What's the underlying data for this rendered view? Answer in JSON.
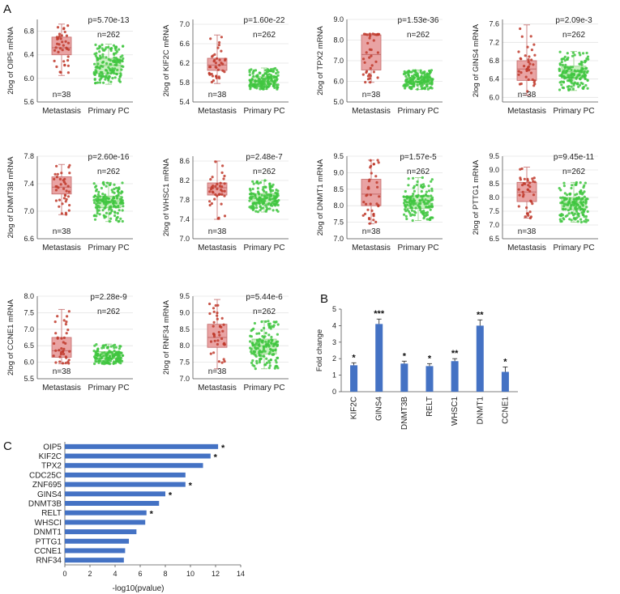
{
  "panels": {
    "A": "A",
    "B": "B",
    "C": "C"
  },
  "chart_data": [
    {
      "type": "box",
      "panel": "A",
      "ylabel": "2log of OIP5 mRNA",
      "categories": [
        "Metastasis",
        "Primary PC"
      ],
      "ylim": [
        5.6,
        7.0
      ],
      "yticks": [
        "5.6",
        "6.0",
        "6.4",
        "6.8"
      ],
      "p_value": "p=5.70e-13",
      "n_labels": [
        "n=38",
        "n=262"
      ],
      "n": [
        38,
        262
      ],
      "boxes": [
        {
          "q1": 6.4,
          "median": 6.52,
          "q3": 6.7,
          "whisker_low": 6.05,
          "whisker_high": 6.92
        },
        {
          "q1": 6.08,
          "median": 6.22,
          "q3": 6.34,
          "whisker_low": 5.9,
          "whisker_high": 6.58
        }
      ]
    },
    {
      "type": "box",
      "panel": "A",
      "ylabel": "2log of KIF2C mRNA",
      "categories": [
        "Metastasis",
        "Primary PC"
      ],
      "ylim": [
        5.4,
        7.1
      ],
      "yticks": [
        "5.4",
        "5.8",
        "6.2",
        "6.6",
        "7.0"
      ],
      "p_value": "p=1.60e-22",
      "n_labels": [
        "n=38",
        "n=262"
      ],
      "n": [
        38,
        262
      ],
      "boxes": [
        {
          "q1": 6.05,
          "median": 6.16,
          "q3": 6.3,
          "whisker_low": 5.78,
          "whisker_high": 6.78
        },
        {
          "q1": 5.76,
          "median": 5.83,
          "q3": 5.92,
          "whisker_low": 5.66,
          "whisker_high": 6.1
        }
      ]
    },
    {
      "type": "box",
      "panel": "A",
      "ylabel": "2log of TPX2 mRNA",
      "categories": [
        "Metastasis",
        "Primary PC"
      ],
      "ylim": [
        5.0,
        9.0
      ],
      "yticks": [
        "5.0",
        "6.0",
        "7.0",
        "8.0",
        "9.0"
      ],
      "p_value": "p=1.53e-36",
      "n_labels": [
        "n=38",
        "n=262"
      ],
      "n": [
        38,
        262
      ],
      "boxes": [
        {
          "q1": 6.55,
          "median": 7.3,
          "q3": 8.25,
          "whisker_low": 5.95,
          "whisker_high": 8.3
        },
        {
          "q1": 5.85,
          "median": 6.0,
          "q3": 6.2,
          "whisker_low": 5.6,
          "whisker_high": 6.55
        }
      ]
    },
    {
      "type": "box",
      "panel": "A",
      "ylabel": "2log of GINS4 mRNA",
      "categories": [
        "Metastasis",
        "Primary PC"
      ],
      "ylim": [
        5.9,
        7.7
      ],
      "yticks": [
        "6.0",
        "6.4",
        "6.8",
        "7.2",
        "7.6"
      ],
      "p_value": "p=2.09e-3",
      "n_labels": [
        "n=38",
        "n=262"
      ],
      "n": [
        38,
        262
      ],
      "boxes": [
        {
          "q1": 6.37,
          "median": 6.62,
          "q3": 6.8,
          "whisker_low": 6.05,
          "whisker_high": 7.58
        },
        {
          "q1": 6.42,
          "median": 6.56,
          "q3": 6.68,
          "whisker_low": 6.15,
          "whisker_high": 7.0
        }
      ]
    },
    {
      "type": "box",
      "panel": "A",
      "ylabel": "2log of DNMT3B mRNA",
      "categories": [
        "Metastasis",
        "Primary PC"
      ],
      "ylim": [
        6.6,
        7.8
      ],
      "yticks": [
        "6.6",
        "7.0",
        "7.4",
        "7.8"
      ],
      "p_value": "p=2.60e-16",
      "n_labels": [
        "n=38",
        "n=262"
      ],
      "n": [
        38,
        262
      ],
      "boxes": [
        {
          "q1": 7.25,
          "median": 7.35,
          "q3": 7.5,
          "whisker_low": 6.95,
          "whisker_high": 7.68
        },
        {
          "q1": 7.05,
          "median": 7.15,
          "q3": 7.22,
          "whisker_low": 6.85,
          "whisker_high": 7.42
        }
      ]
    },
    {
      "type": "box",
      "panel": "A",
      "ylabel": "2log of WHSC1 mRNA",
      "categories": [
        "Metastasis",
        "Primary PC"
      ],
      "ylim": [
        7.0,
        8.7
      ],
      "yticks": [
        "7.0",
        "7.4",
        "7.8",
        "8.2",
        "8.6"
      ],
      "p_value": "p=2.48e-7",
      "n_labels": [
        "n=38",
        "n=262"
      ],
      "n": [
        38,
        262
      ],
      "boxes": [
        {
          "q1": 7.9,
          "median": 8.05,
          "q3": 8.15,
          "whisker_low": 7.4,
          "whisker_high": 8.6
        },
        {
          "q1": 7.72,
          "median": 7.83,
          "q3": 7.93,
          "whisker_low": 7.55,
          "whisker_high": 8.2
        }
      ]
    },
    {
      "type": "box",
      "panel": "A",
      "ylabel": "2log of DNMT1 mRNA",
      "categories": [
        "Metastasis",
        "Primary PC"
      ],
      "ylim": [
        7.0,
        9.5
      ],
      "yticks": [
        "7.0",
        "7.5",
        "8.0",
        "8.5",
        "9.0",
        "9.5"
      ],
      "p_value": "p=1.57e-5",
      "n_labels": [
        "n=38",
        "n=262"
      ],
      "n": [
        38,
        262
      ],
      "boxes": [
        {
          "q1": 8.0,
          "median": 8.35,
          "q3": 8.8,
          "whisker_low": 7.45,
          "whisker_high": 9.38
        },
        {
          "q1": 7.92,
          "median": 8.1,
          "q3": 8.3,
          "whisker_low": 7.55,
          "whisker_high": 8.85
        }
      ]
    },
    {
      "type": "box",
      "panel": "A",
      "ylabel": "2log of PTTG1 mRNA",
      "categories": [
        "Metastasis",
        "Primary PC"
      ],
      "ylim": [
        6.5,
        9.5
      ],
      "yticks": [
        "6.5",
        "7.0",
        "7.5",
        "8.0",
        "8.5",
        "9.0",
        "9.5"
      ],
      "p_value": "p=9.45e-11",
      "n_labels": [
        "n=38",
        "n=262"
      ],
      "n": [
        38,
        262
      ],
      "boxes": [
        {
          "q1": 7.85,
          "median": 8.2,
          "q3": 8.55,
          "whisker_low": 7.25,
          "whisker_high": 9.1
        },
        {
          "q1": 7.55,
          "median": 7.8,
          "q3": 8.0,
          "whisker_low": 7.1,
          "whisker_high": 8.55
        }
      ]
    },
    {
      "type": "box",
      "panel": "A",
      "ylabel": "2log of CCNE1 mRNA",
      "categories": [
        "Metastasis",
        "Primary PC"
      ],
      "ylim": [
        5.5,
        8.0
      ],
      "yticks": [
        "5.5",
        "6.0",
        "6.5",
        "7.0",
        "7.5",
        "8.0"
      ],
      "p_value": "p=2.28e-9",
      "n_labels": [
        "n=38",
        "n=262"
      ],
      "n": [
        38,
        262
      ],
      "boxes": [
        {
          "q1": 6.15,
          "median": 6.35,
          "q3": 6.75,
          "whisker_low": 5.95,
          "whisker_high": 7.6
        },
        {
          "q1": 6.1,
          "median": 6.22,
          "q3": 6.32,
          "whisker_low": 5.95,
          "whisker_high": 6.55
        }
      ]
    },
    {
      "type": "box",
      "panel": "A",
      "ylabel": "2log of RNF34 mRNA",
      "categories": [
        "Metastasis",
        "Primary PC"
      ],
      "ylim": [
        7.0,
        9.5
      ],
      "yticks": [
        "7.0",
        "7.5",
        "8.0",
        "8.5",
        "9.0",
        "9.5"
      ],
      "p_value": "p=5.44e-6",
      "n_labels": [
        "n=38",
        "n=262"
      ],
      "n": [
        38,
        262
      ],
      "boxes": [
        {
          "q1": 7.95,
          "median": 8.25,
          "q3": 8.65,
          "whisker_low": 7.3,
          "whisker_high": 9.4
        },
        {
          "q1": 7.75,
          "median": 8.0,
          "q3": 8.2,
          "whisker_low": 7.3,
          "whisker_high": 8.75
        }
      ]
    },
    {
      "type": "bar",
      "panel": "B",
      "ylabel": "Fold change",
      "categories": [
        "KIF2C",
        "GINS4",
        "DNMT3B",
        "RELT",
        "WHSC1",
        "DNMT1",
        "CCNE1"
      ],
      "values": [
        1.6,
        4.1,
        1.7,
        1.55,
        1.85,
        4.0,
        1.2
      ],
      "errors": [
        0.15,
        0.3,
        0.15,
        0.15,
        0.15,
        0.35,
        0.3
      ],
      "significance": [
        "*",
        "***",
        "*",
        "*",
        "**",
        "**",
        "*"
      ],
      "ylim": [
        0,
        5
      ],
      "yticks": [
        "0",
        "1",
        "2",
        "3",
        "4",
        "5"
      ]
    },
    {
      "type": "barh",
      "panel": "C",
      "xlabel": "-log10(pvalue)",
      "categories": [
        "OIP5",
        "KIF2C",
        "TPX2",
        "CDC25C",
        "ZNF695",
        "GINS4",
        "DNMT3B",
        "RELT",
        "WHSCI",
        "DNMT1",
        "PTTG1",
        "CCNE1",
        "RNF34"
      ],
      "values": [
        12.2,
        11.6,
        11.0,
        9.6,
        9.6,
        8.0,
        7.5,
        6.5,
        6.4,
        5.7,
        5.1,
        4.8,
        4.7
      ],
      "significance": [
        "*",
        "*",
        "",
        "",
        "*",
        "*",
        "",
        "*",
        "",
        "",
        "",
        "",
        ""
      ],
      "xlim": [
        0,
        14
      ],
      "xticks": [
        "0",
        "2",
        "4",
        "6",
        "8",
        "10",
        "12",
        "14"
      ]
    }
  ]
}
